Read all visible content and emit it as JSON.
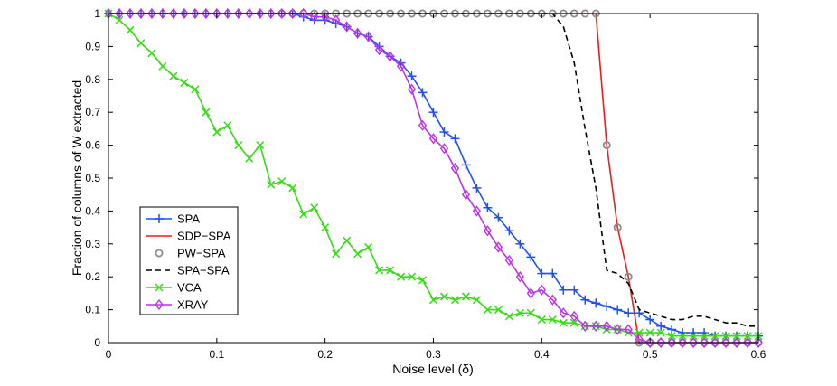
{
  "chart_data": {
    "type": "line",
    "title": "",
    "xlabel": "Noise level (δ)",
    "ylabel": "Fraction of columns of W extracted",
    "xlim": [
      0,
      0.6
    ],
    "ylim": [
      0,
      1
    ],
    "xticks": [
      0,
      0.1,
      0.2,
      0.3,
      0.4,
      0.5,
      0.6
    ],
    "xtick_labels": [
      "0",
      "0.1",
      "0.2",
      "0.3",
      "0.4",
      "0.5",
      "0.6"
    ],
    "yticks": [
      0,
      0.1,
      0.2,
      0.3,
      0.4,
      0.5,
      0.6,
      0.7,
      0.8,
      0.9,
      1
    ],
    "ytick_labels": [
      "0",
      "0.1",
      "0.2",
      "0.3",
      "0.4",
      "0.5",
      "0.6",
      "0.7",
      "0.8",
      "0.9",
      "1"
    ],
    "grid": false,
    "legend_position": "lower-left",
    "series": [
      {
        "name": "SPA",
        "color": "#1f4fff",
        "style": "solid",
        "marker": "plus",
        "x": [
          0,
          0.01,
          0.02,
          0.03,
          0.04,
          0.05,
          0.06,
          0.07,
          0.08,
          0.09,
          0.1,
          0.11,
          0.12,
          0.13,
          0.14,
          0.15,
          0.16,
          0.17,
          0.18,
          0.19,
          0.2,
          0.21,
          0.22,
          0.23,
          0.24,
          0.25,
          0.26,
          0.27,
          0.28,
          0.29,
          0.3,
          0.31,
          0.32,
          0.33,
          0.34,
          0.35,
          0.36,
          0.37,
          0.38,
          0.39,
          0.4,
          0.41,
          0.42,
          0.43,
          0.44,
          0.45,
          0.46,
          0.47,
          0.48,
          0.49,
          0.5,
          0.51,
          0.52,
          0.53,
          0.54,
          0.55,
          0.56,
          0.57,
          0.58,
          0.59,
          0.6
        ],
        "y": [
          1,
          1,
          1,
          1,
          1,
          1,
          1,
          1,
          1,
          1,
          1,
          1,
          1,
          1,
          1,
          1,
          1,
          1,
          0.99,
          0.98,
          0.98,
          0.97,
          0.96,
          0.94,
          0.93,
          0.9,
          0.87,
          0.85,
          0.81,
          0.76,
          0.7,
          0.64,
          0.62,
          0.54,
          0.47,
          0.41,
          0.38,
          0.34,
          0.3,
          0.26,
          0.21,
          0.21,
          0.16,
          0.16,
          0.13,
          0.12,
          0.11,
          0.1,
          0.09,
          0.09,
          0.07,
          0.05,
          0.04,
          0.03,
          0.03,
          0.03,
          0.02,
          0.02,
          0.02,
          0.02,
          0.02
        ]
      },
      {
        "name": "SDP−SPA",
        "color": "#ee1c1c",
        "style": "solid",
        "marker": "none",
        "x": [
          0,
          0.45,
          0.46,
          0.47,
          0.48,
          0.49,
          0.6
        ],
        "y": [
          1,
          1,
          0.6,
          0.35,
          0.2,
          0,
          0
        ]
      },
      {
        "name": "PW−SPA",
        "color": "#8c8c8c",
        "style": "none",
        "marker": "circle",
        "x": [
          0.16,
          0.17,
          0.18,
          0.19,
          0.2,
          0.21,
          0.22,
          0.23,
          0.24,
          0.25,
          0.26,
          0.27,
          0.28,
          0.29,
          0.3,
          0.31,
          0.32,
          0.33,
          0.34,
          0.35,
          0.36,
          0.37,
          0.38,
          0.39,
          0.4,
          0.41,
          0.42,
          0.43,
          0.44,
          0.45,
          0.46,
          0.47,
          0.48,
          0.49,
          0.5,
          0.51,
          0.52,
          0.53,
          0.54,
          0.55,
          0.56,
          0.57,
          0.58,
          0.59,
          0.6
        ],
        "y": [
          1,
          1,
          1,
          1,
          1,
          1,
          1,
          1,
          1,
          1,
          1,
          1,
          1,
          1,
          1,
          1,
          1,
          1,
          1,
          1,
          1,
          1,
          1,
          1,
          1,
          1,
          1,
          1,
          1,
          1,
          0.6,
          0.35,
          0.2,
          0,
          0,
          0,
          0,
          0,
          0,
          0,
          0,
          0,
          0,
          0,
          0
        ]
      },
      {
        "name": "SPA−SPA",
        "color": "#000000",
        "style": "dashed",
        "marker": "none",
        "x": [
          0,
          0.41,
          0.42,
          0.43,
          0.44,
          0.45,
          0.46,
          0.47,
          0.48,
          0.49,
          0.5,
          0.51,
          0.52,
          0.53,
          0.54,
          0.55,
          0.56,
          0.57,
          0.58,
          0.59,
          0.6
        ],
        "y": [
          1,
          1,
          0.96,
          0.85,
          0.65,
          0.47,
          0.22,
          0.21,
          0.18,
          0.1,
          0.09,
          0.08,
          0.07,
          0.07,
          0.08,
          0.08,
          0.07,
          0.06,
          0.06,
          0.05,
          0.05
        ]
      },
      {
        "name": "VCA",
        "color": "#33dd11",
        "style": "solid",
        "marker": "x",
        "x": [
          0,
          0.01,
          0.02,
          0.03,
          0.04,
          0.05,
          0.06,
          0.07,
          0.08,
          0.09,
          0.1,
          0.11,
          0.12,
          0.13,
          0.14,
          0.15,
          0.16,
          0.17,
          0.18,
          0.19,
          0.2,
          0.21,
          0.22,
          0.23,
          0.24,
          0.25,
          0.26,
          0.27,
          0.28,
          0.29,
          0.3,
          0.31,
          0.32,
          0.33,
          0.34,
          0.35,
          0.36,
          0.37,
          0.38,
          0.39,
          0.4,
          0.41,
          0.42,
          0.43,
          0.44,
          0.45,
          0.46,
          0.47,
          0.48,
          0.49,
          0.5,
          0.51,
          0.52,
          0.53,
          0.54,
          0.55,
          0.56,
          0.57,
          0.58,
          0.59,
          0.6
        ],
        "y": [
          1,
          0.98,
          0.95,
          0.91,
          0.88,
          0.84,
          0.81,
          0.79,
          0.77,
          0.7,
          0.64,
          0.66,
          0.6,
          0.56,
          0.6,
          0.48,
          0.49,
          0.47,
          0.39,
          0.41,
          0.35,
          0.27,
          0.31,
          0.27,
          0.29,
          0.22,
          0.22,
          0.2,
          0.2,
          0.19,
          0.13,
          0.14,
          0.13,
          0.14,
          0.13,
          0.1,
          0.1,
          0.08,
          0.09,
          0.09,
          0.07,
          0.07,
          0.06,
          0.06,
          0.05,
          0.05,
          0.04,
          0.04,
          0.03,
          0.03,
          0.03,
          0.03,
          0.02,
          0.02,
          0.02,
          0.02,
          0.02,
          0.02,
          0.02,
          0.02,
          0.02
        ]
      },
      {
        "name": "XRAY",
        "color": "#bb33ee",
        "style": "solid",
        "marker": "diamond",
        "x": [
          0,
          0.01,
          0.02,
          0.03,
          0.04,
          0.05,
          0.06,
          0.07,
          0.08,
          0.09,
          0.1,
          0.11,
          0.12,
          0.13,
          0.14,
          0.15,
          0.16,
          0.17,
          0.18,
          0.19,
          0.2,
          0.21,
          0.22,
          0.23,
          0.24,
          0.25,
          0.26,
          0.27,
          0.28,
          0.29,
          0.3,
          0.31,
          0.32,
          0.33,
          0.34,
          0.35,
          0.36,
          0.37,
          0.38,
          0.39,
          0.4,
          0.41,
          0.42,
          0.43,
          0.44,
          0.45,
          0.46,
          0.47,
          0.48,
          0.49,
          0.5,
          0.51,
          0.52,
          0.53,
          0.54,
          0.55,
          0.56,
          0.57,
          0.58,
          0.59,
          0.6
        ],
        "y": [
          1,
          1,
          1,
          1,
          1,
          1,
          1,
          1,
          1,
          1,
          1,
          1,
          1,
          1,
          1,
          1,
          1,
          1,
          1,
          0.99,
          0.99,
          0.98,
          0.96,
          0.94,
          0.93,
          0.89,
          0.87,
          0.84,
          0.77,
          0.66,
          0.62,
          0.59,
          0.53,
          0.45,
          0.4,
          0.34,
          0.29,
          0.25,
          0.2,
          0.15,
          0.16,
          0.13,
          0.09,
          0.08,
          0.05,
          0.05,
          0.05,
          0.04,
          0.04,
          0.01,
          0,
          0,
          0,
          0,
          0,
          0,
          0,
          0,
          0,
          0,
          0
        ]
      }
    ]
  }
}
